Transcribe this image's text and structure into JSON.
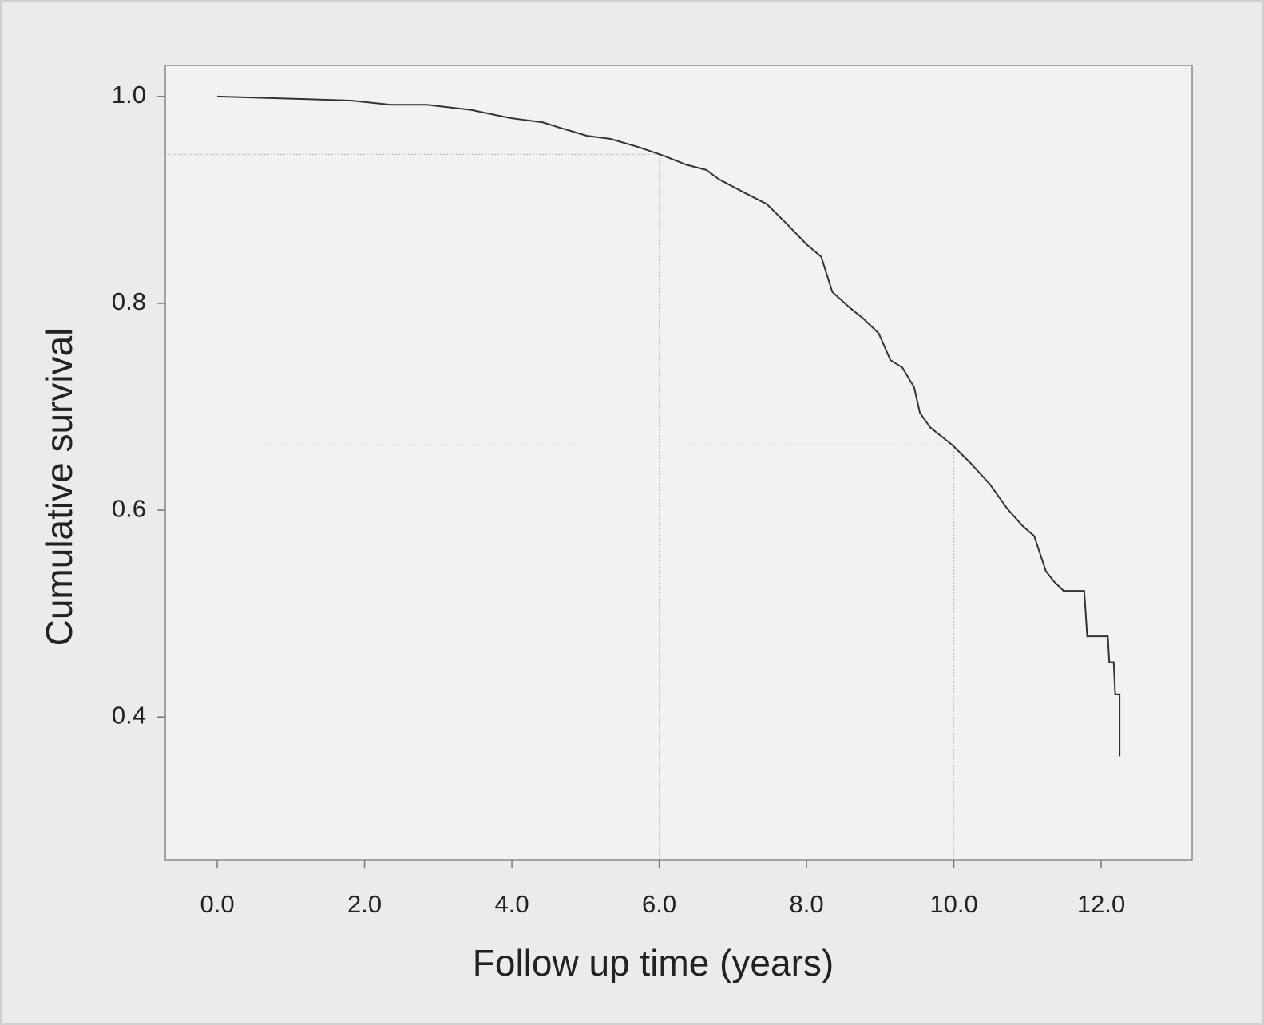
{
  "chart_data": {
    "type": "line",
    "xlabel": "Follow up time (years)",
    "ylabel": "Cumulative survival",
    "x": [
      0.0,
      0.95,
      1.82,
      2.36,
      2.85,
      3.45,
      3.99,
      4.42,
      4.64,
      5.02,
      5.34,
      5.72,
      6.05,
      6.37,
      6.64,
      6.81,
      7.13,
      7.46,
      7.73,
      8.0,
      8.2,
      8.35,
      8.6,
      8.76,
      8.98,
      9.14,
      9.3,
      9.46,
      9.54,
      9.68,
      9.98,
      10.22,
      10.49,
      10.73,
      10.93,
      11.09,
      11.25,
      11.36,
      11.49,
      11.77,
      11.81,
      12.09,
      12.11,
      12.17,
      12.19,
      12.25,
      12.25
    ],
    "values": [
      1.0,
      0.998,
      0.996,
      0.992,
      0.992,
      0.987,
      0.979,
      0.975,
      0.97,
      0.962,
      0.959,
      0.951,
      0.943,
      0.934,
      0.929,
      0.92,
      0.908,
      0.896,
      0.877,
      0.857,
      0.845,
      0.811,
      0.795,
      0.786,
      0.771,
      0.745,
      0.738,
      0.719,
      0.694,
      0.68,
      0.663,
      0.646,
      0.625,
      0.601,
      0.585,
      0.575,
      0.541,
      0.531,
      0.522,
      0.522,
      0.478,
      0.478,
      0.453,
      0.453,
      0.422,
      0.422,
      0.362
    ],
    "color": "#333333",
    "reference_lines": [
      {
        "x": 6.0,
        "y": 0.944
      },
      {
        "x": 10.0,
        "y": 0.663
      }
    ],
    "xlim": [
      -0.705,
      13.235
    ],
    "xticks": [
      {
        "value": 0,
        "label": "0.0"
      },
      {
        "value": 2,
        "label": "2.0"
      },
      {
        "value": 4,
        "label": "4.0"
      },
      {
        "value": 6,
        "label": "6.0"
      },
      {
        "value": 8,
        "label": "8.0"
      },
      {
        "value": 10,
        "label": "10.0"
      },
      {
        "value": 12,
        "label": "12.0"
      }
    ],
    "ylim": [
      0.262,
      1.03
    ],
    "yticks": [
      0.4,
      0.6,
      0.8,
      {
        "value": 1,
        "label": "1.0"
      }
    ],
    "grid": false
  }
}
